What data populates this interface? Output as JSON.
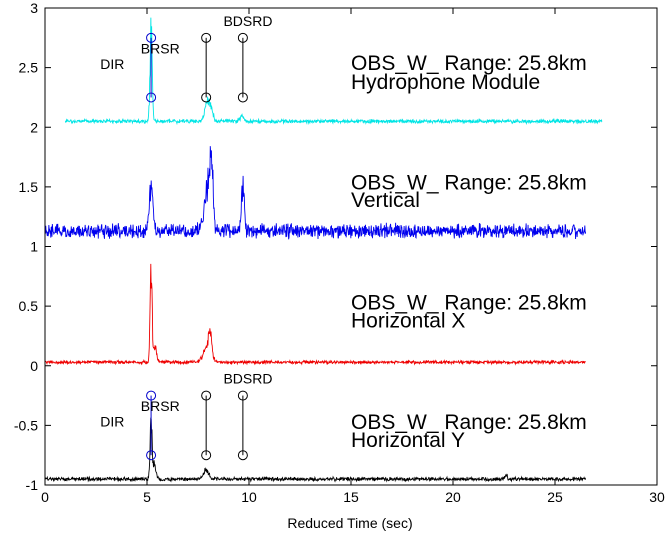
{
  "chart_data": {
    "type": "line",
    "xlabel": "Reduced Time (sec)",
    "ylabel": "",
    "title": "",
    "xlim": [
      0,
      30
    ],
    "ylim": [
      -1,
      3
    ],
    "xticks": [
      0,
      5,
      10,
      15,
      20,
      25,
      30
    ],
    "yticks": [
      -1,
      -0.5,
      0,
      0.5,
      1,
      1.5,
      2,
      2.5
    ],
    "xtick_labels": [
      "0",
      "5",
      "10",
      "15",
      "20",
      "25",
      "30"
    ],
    "ytick_labels": [
      "-1",
      "-0.5",
      "0",
      "0.5",
      "1",
      "1.5",
      "2",
      "2.5"
    ],
    "grid": false,
    "series": [
      {
        "name": "Hydrophone Module",
        "color": "#00e5e5",
        "baseline": 2.05,
        "noise": 0.012,
        "x_start": 1.0,
        "x_end": 27.3,
        "label_line1": "OBS_W_ Range: 25.8km",
        "label_line2": "Hydrophone Module",
        "label_x": 15.0,
        "label_y1": 2.48,
        "label_y2": 2.32,
        "peaks": [
          {
            "x": 5.2,
            "height": 1.05,
            "width": 0.05
          },
          {
            "x": 7.95,
            "height": 0.2,
            "width": 0.12
          },
          {
            "x": 8.15,
            "height": 0.1,
            "width": 0.1
          },
          {
            "x": 9.65,
            "height": 0.06,
            "width": 0.08
          }
        ]
      },
      {
        "name": "Vertical",
        "color": "#0000ee",
        "baseline": 1.13,
        "noise": 0.045,
        "x_start": 0.0,
        "x_end": 26.5,
        "label_line1": "OBS_W_ Range: 25.8km",
        "label_line2": "Vertical",
        "label_x": 15.0,
        "label_y1": 1.48,
        "label_y2": 1.33,
        "peaks": [
          {
            "x": 5.2,
            "height": 0.42,
            "width": 0.1
          },
          {
            "x": 7.95,
            "height": 0.45,
            "width": 0.15
          },
          {
            "x": 8.15,
            "height": 0.68,
            "width": 0.08
          },
          {
            "x": 9.7,
            "height": 0.52,
            "width": 0.07
          }
        ]
      },
      {
        "name": "Horizontal X",
        "color": "#ee0000",
        "baseline": 0.03,
        "noise": 0.01,
        "x_start": 0.0,
        "x_end": 26.5,
        "label_line1": "OBS_W_ Range: 25.8km",
        "label_line2": "Horizontal X",
        "label_x": 15.0,
        "label_y1": 0.47,
        "label_y2": 0.32,
        "peaks": [
          {
            "x": 5.2,
            "height": 0.95,
            "width": 0.05
          },
          {
            "x": 5.4,
            "height": 0.15,
            "width": 0.08
          },
          {
            "x": 7.95,
            "height": 0.17,
            "width": 0.18
          },
          {
            "x": 8.1,
            "height": 0.22,
            "width": 0.07
          }
        ]
      },
      {
        "name": "Horizontal Y",
        "color": "#000000",
        "baseline": -0.95,
        "noise": 0.012,
        "x_start": 0.0,
        "x_end": 26.5,
        "label_line1": "OBS_W_ Range: 25.8km",
        "label_line2": "Horizontal Y",
        "label_x": 15.0,
        "label_y1": -0.53,
        "label_y2": -0.68,
        "peaks": [
          {
            "x": 5.2,
            "height": 0.55,
            "width": 0.05
          },
          {
            "x": 5.35,
            "height": 0.15,
            "width": 0.08
          },
          {
            "x": 7.9,
            "height": 0.1,
            "width": 0.12
          },
          {
            "x": 22.6,
            "height": 0.05,
            "width": 0.05
          }
        ]
      }
    ],
    "phase_markers": [
      {
        "group": "top",
        "x": 5.2,
        "y_top": 2.75,
        "y_bottom": 2.25,
        "color": "#0000cc"
      },
      {
        "group": "top",
        "x": 7.9,
        "y_top": 2.75,
        "y_bottom": 2.25,
        "color": "#000000"
      },
      {
        "group": "top",
        "x": 9.7,
        "y_top": 2.75,
        "y_bottom": 2.25,
        "color": "#000000"
      },
      {
        "group": "bottom",
        "x": 5.2,
        "y_top": -0.25,
        "y_bottom": -0.75,
        "color": "#0000cc"
      },
      {
        "group": "bottom",
        "x": 7.9,
        "y_top": -0.25,
        "y_bottom": -0.75,
        "color": "#000000"
      },
      {
        "group": "bottom",
        "x": 9.7,
        "y_top": -0.25,
        "y_bottom": -0.75,
        "color": "#000000"
      }
    ],
    "annotations": [
      {
        "text": "DIR",
        "x": 3.3,
        "y": 2.49
      },
      {
        "text": "BRSR",
        "x": 5.65,
        "y": 2.62
      },
      {
        "text": "BDSRD",
        "x": 9.95,
        "y": 2.85
      },
      {
        "text": "DIR",
        "x": 3.3,
        "y": -0.51
      },
      {
        "text": "BRSR",
        "x": 5.65,
        "y": -0.38
      },
      {
        "text": "BDSRD",
        "x": 9.95,
        "y": -0.15
      }
    ],
    "top_tick_partial_label": "3"
  }
}
